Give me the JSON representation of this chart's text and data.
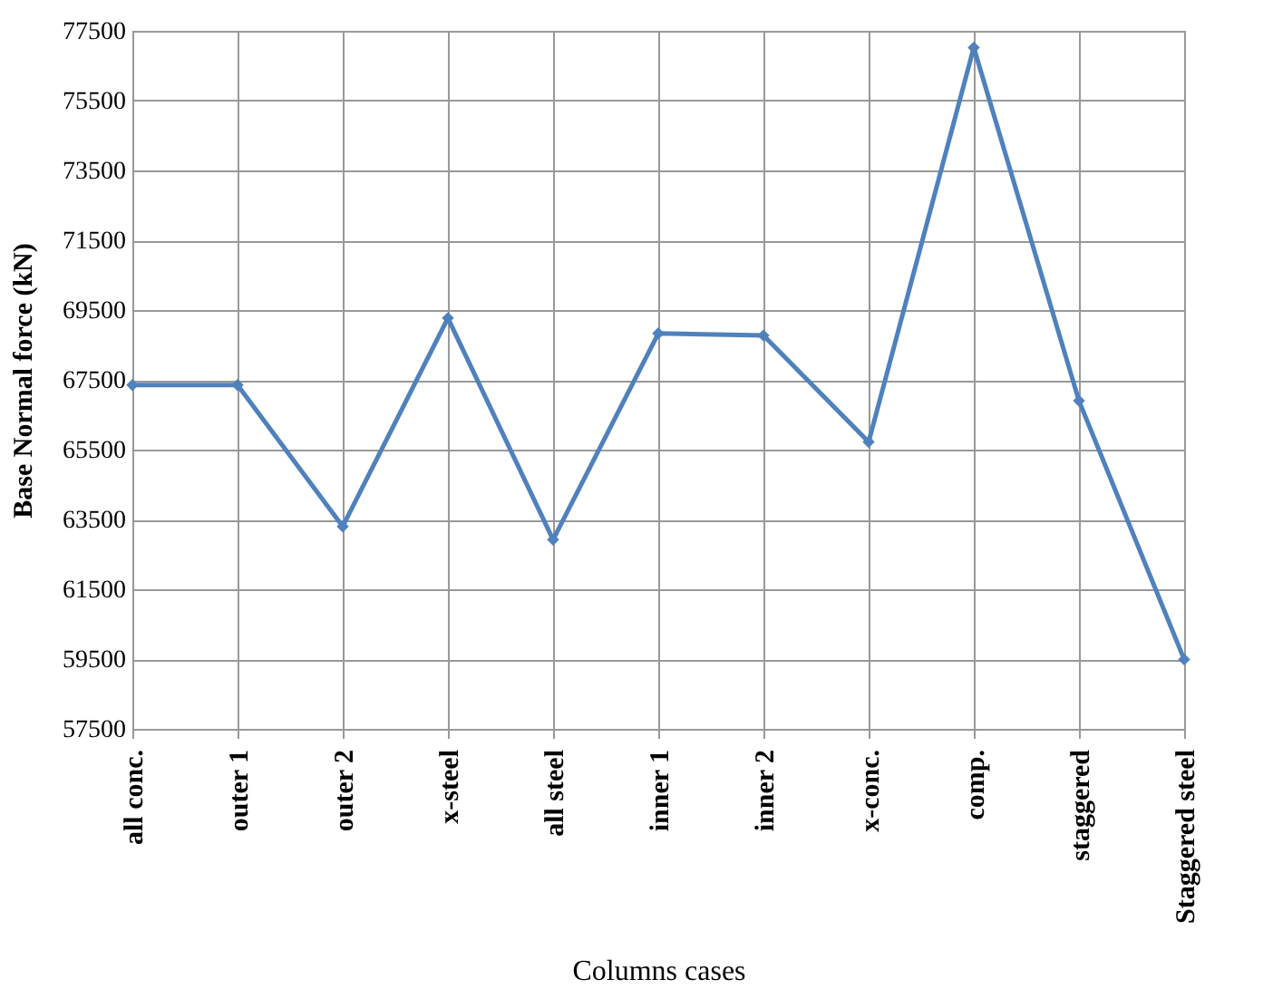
{
  "chart_data": {
    "type": "line",
    "xlabel": "Columns  cases",
    "ylabel": "Base Normal force (kN)",
    "categories": [
      "all conc.",
      "outer 1",
      "outer 2",
      "x-steel",
      "all steel",
      "inner 1",
      "inner 2",
      "x-conc.",
      "comp.",
      "staggered",
      "Staggered steel"
    ],
    "series": [
      {
        "color": "#4f81bd",
        "values": [
          67350,
          67350,
          63300,
          69270,
          62920,
          68830,
          68770,
          65720,
          77020,
          66900,
          59490
        ]
      }
    ],
    "ylim": [
      57500,
      77500
    ],
    "yticks": [
      57500,
      59500,
      61500,
      63500,
      65500,
      67500,
      69500,
      71500,
      73500,
      75500,
      77500
    ],
    "grid": true,
    "marker": "diamond",
    "line_style": "solid",
    "legend": false
  }
}
